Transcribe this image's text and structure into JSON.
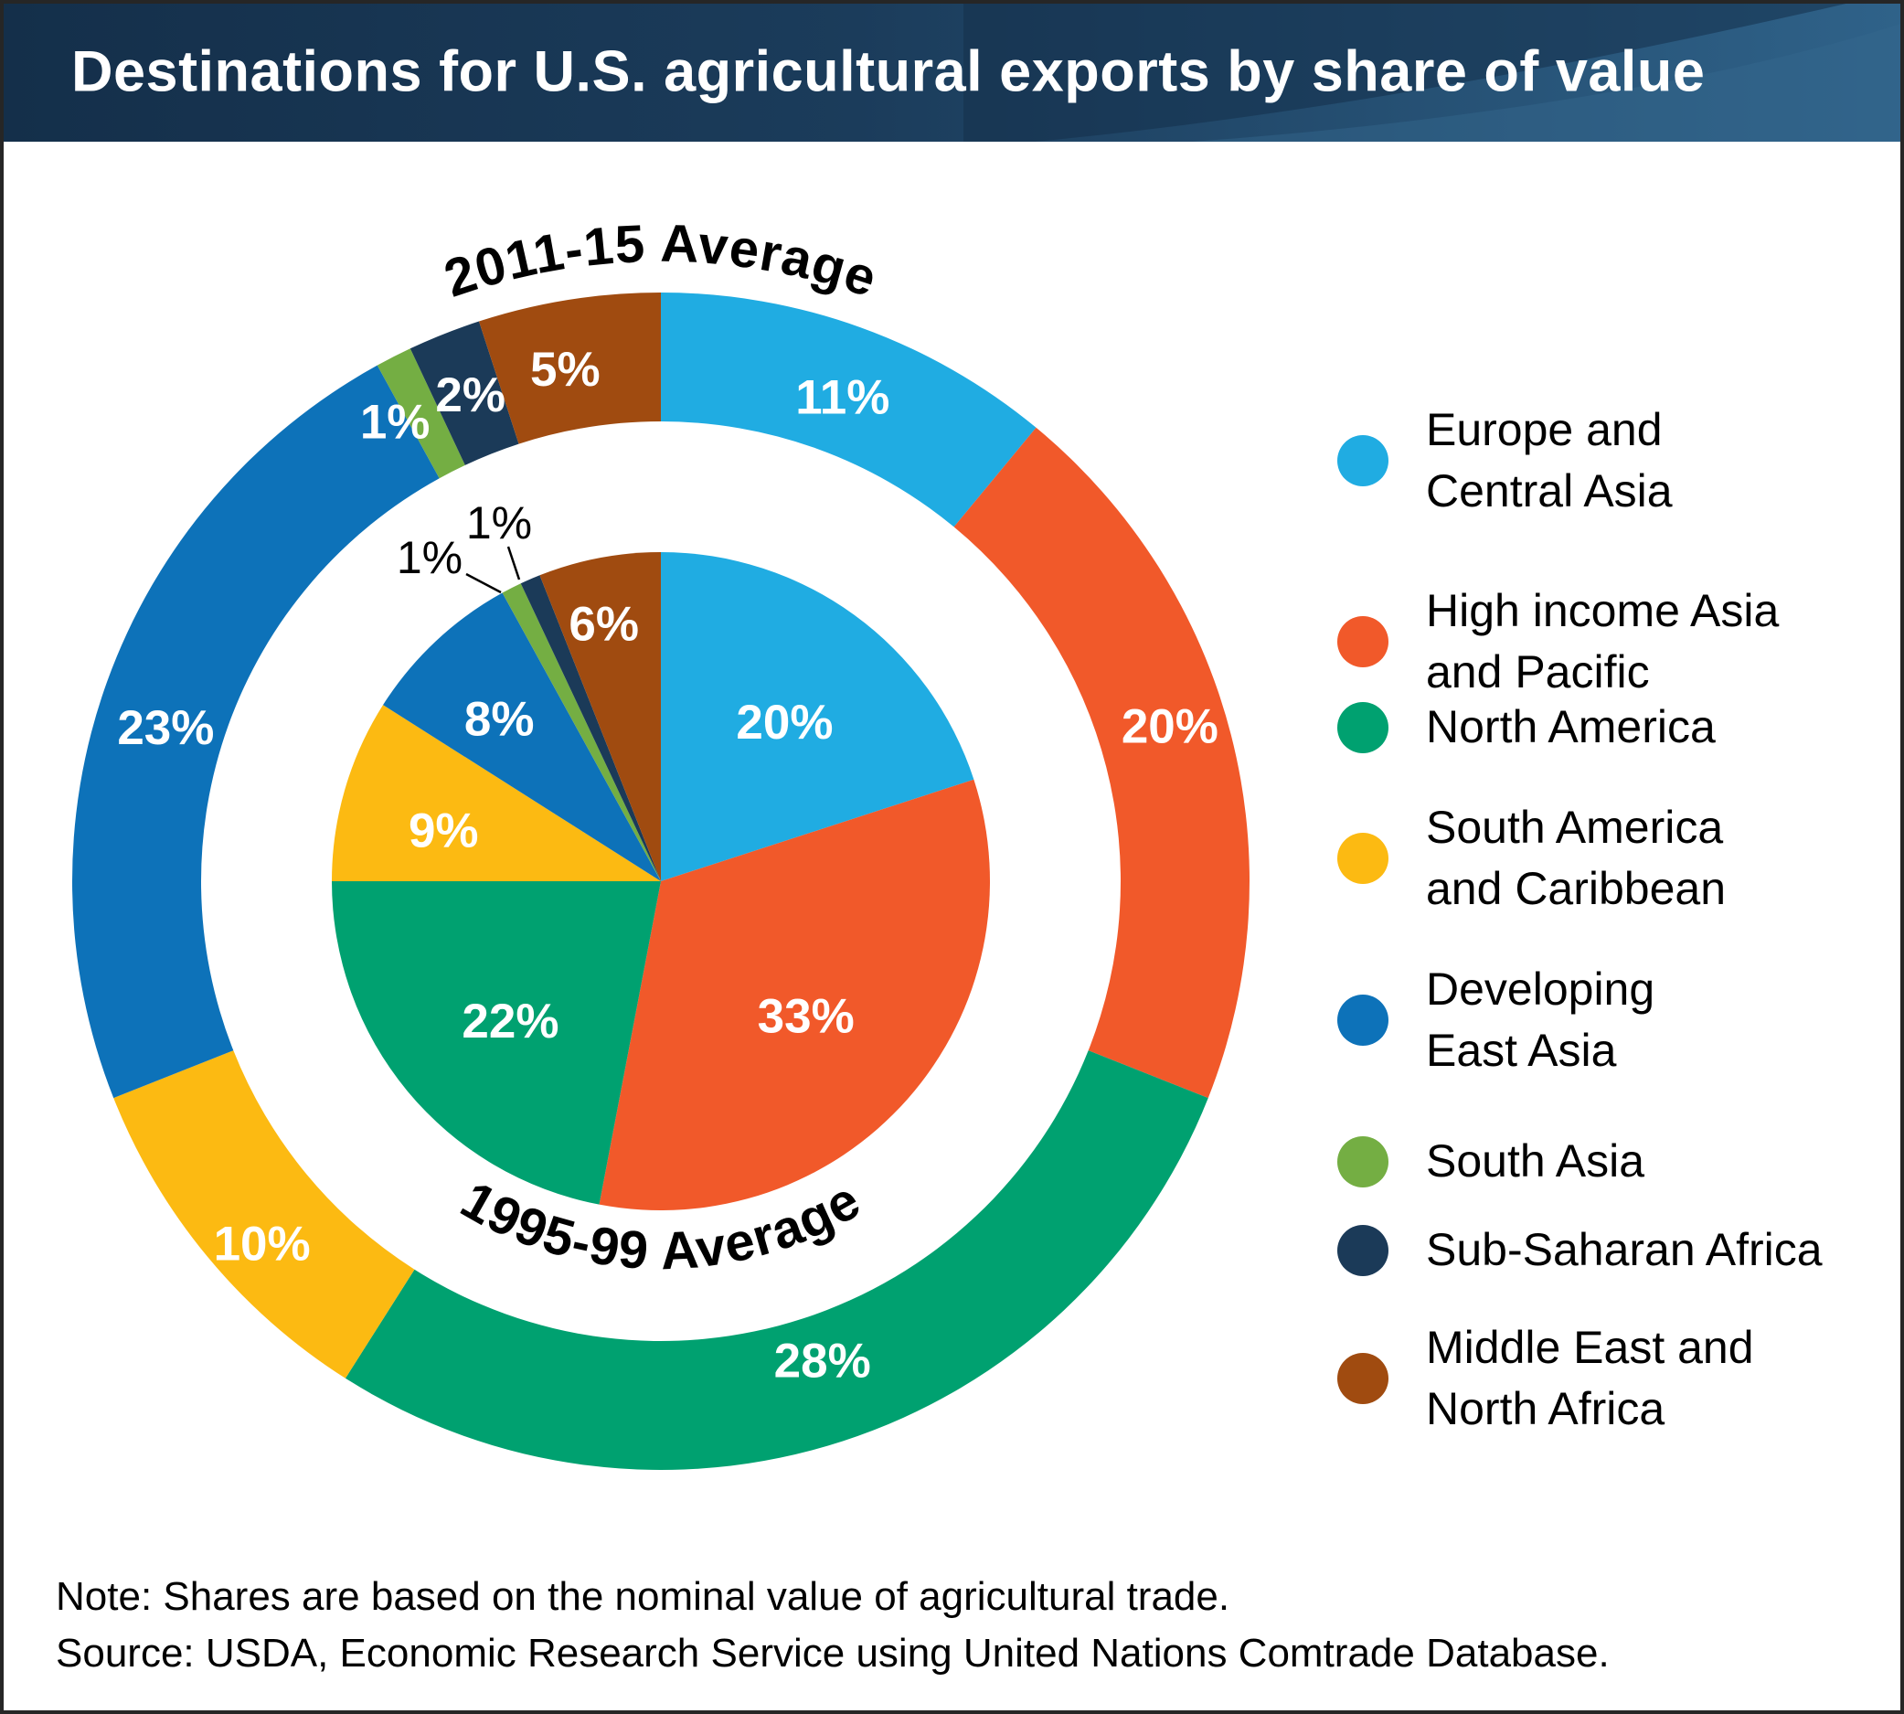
{
  "header": {
    "title": "Destinations for U.S. agricultural exports by share of value"
  },
  "chart_data": {
    "type": "pie",
    "subtype": "double-donut",
    "title": "Destinations for U.S. agricultural exports by share of value",
    "categories": [
      "Europe and Central Asia",
      "High income Asia and Pacific",
      "North America",
      "South America and Caribbean",
      "Developing East Asia",
      "South Asia",
      "Sub-Saharan Africa",
      "Middle East and North Africa"
    ],
    "colors": [
      "#20ACE2",
      "#F1592A",
      "#00A170",
      "#FCBA12",
      "#0D72B9",
      "#74AE43",
      "#1B3A58",
      "#A04B10"
    ],
    "unit": "%",
    "start_angle": "12-oclock",
    "direction": "clockwise",
    "series": [
      {
        "name": "2011-15 Average",
        "ring": "outer",
        "values": [
          11,
          20,
          28,
          10,
          23,
          1,
          2,
          5
        ]
      },
      {
        "name": "1995-99 Average",
        "ring": "inner",
        "values": [
          20,
          33,
          22,
          9,
          8,
          1,
          1,
          6
        ]
      }
    ],
    "legend_position": "right"
  },
  "legend": {
    "items": [
      {
        "label": "Europe and Central Asia",
        "lines": [
          "Europe and",
          "Central Asia"
        ],
        "color": "#20ACE2"
      },
      {
        "label": "High income Asia and Pacific",
        "lines": [
          "High income Asia",
          "and Pacific"
        ],
        "color": "#F1592A"
      },
      {
        "label": "North America",
        "lines": [
          "North America"
        ],
        "color": "#00A170"
      },
      {
        "label": "South America and Caribbean",
        "lines": [
          "South America",
          "and Caribbean"
        ],
        "color": "#FCBA12"
      },
      {
        "label": "Developing East Asia",
        "lines": [
          "Developing",
          "East Asia"
        ],
        "color": "#0D72B9"
      },
      {
        "label": "South Asia",
        "lines": [
          "South Asia"
        ],
        "color": "#74AE43"
      },
      {
        "label": "Sub-Saharan Africa",
        "lines": [
          "Sub-Saharan Africa"
        ],
        "color": "#1B3A58"
      },
      {
        "label": "Middle East and North Africa",
        "lines": [
          "Middle East and",
          "North Africa"
        ],
        "color": "#A04B10"
      }
    ]
  },
  "footer": {
    "note": "Note: Shares are based on the nominal value of agricultural trade.",
    "source": "Source: USDA, Economic Research Service using United Nations Comtrade Database."
  }
}
